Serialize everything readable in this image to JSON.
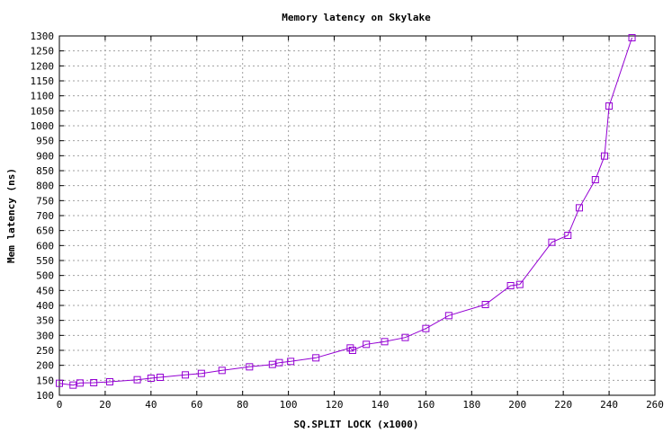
{
  "chart_data": {
    "type": "line",
    "title": "Memory latency on Skylake",
    "xlabel": "SQ.SPLIT LOCK (x1000)",
    "ylabel": "Mem latency (ns)",
    "xlim": [
      0,
      260
    ],
    "ylim": [
      100,
      1300
    ],
    "xticks": [
      0,
      20,
      40,
      60,
      80,
      100,
      120,
      140,
      160,
      180,
      200,
      220,
      240,
      260
    ],
    "yticks": [
      100,
      150,
      200,
      250,
      300,
      350,
      400,
      450,
      500,
      550,
      600,
      650,
      700,
      750,
      800,
      850,
      900,
      950,
      1000,
      1050,
      1100,
      1150,
      1200,
      1250,
      1300
    ],
    "grid": true,
    "legend": "none",
    "marker": "square",
    "series_color": "#9400d3",
    "series": [
      {
        "points": [
          [
            0,
            140
          ],
          [
            6,
            134
          ],
          [
            9,
            141
          ],
          [
            15,
            142
          ],
          [
            22,
            145
          ],
          [
            34,
            152
          ],
          [
            40,
            157
          ],
          [
            44,
            160
          ],
          [
            55,
            168
          ],
          [
            62,
            173
          ],
          [
            71,
            183
          ],
          [
            83,
            195
          ],
          [
            93,
            203
          ],
          [
            96,
            209
          ],
          [
            101,
            213
          ],
          [
            112,
            225
          ],
          [
            127,
            258
          ],
          [
            128,
            250
          ],
          [
            134,
            270
          ],
          [
            142,
            279
          ],
          [
            151,
            293
          ],
          [
            160,
            323
          ],
          [
            170,
            366
          ],
          [
            186,
            403
          ],
          [
            197,
            466
          ],
          [
            201,
            470
          ],
          [
            215,
            611
          ],
          [
            222,
            634
          ],
          [
            227,
            726
          ],
          [
            234,
            820
          ],
          [
            238,
            899
          ],
          [
            240,
            1066
          ],
          [
            250,
            1294
          ]
        ]
      }
    ]
  }
}
